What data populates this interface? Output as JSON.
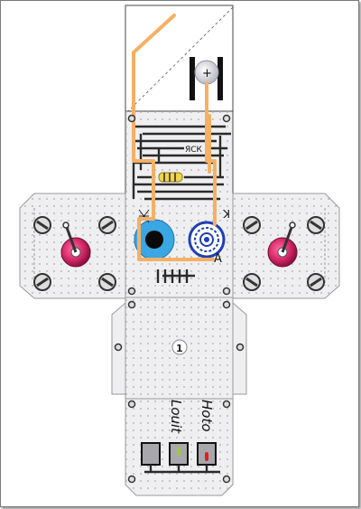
{
  "title": "",
  "labels": {
    "anode_letter": "A",
    "cathode_letter": "K",
    "resistor_code": "ЯСК",
    "plus_sign": "+",
    "page_number": "1",
    "script_top": "Hoto",
    "script_bottom": "Louit"
  },
  "colors": {
    "wire": "#f5b064",
    "panel": "#efeff1",
    "fold_line": "#9a9a9a",
    "knob_ring": "#b01650",
    "dial_fill": "#3aa6e4",
    "led_green": "#9ccc3c",
    "led_red": "#e02020",
    "trace": "#2a2a2a"
  },
  "icons": [
    "screw-icon",
    "toggle-knob-icon",
    "battery-cell-icon",
    "resistor-icon",
    "blue-dial-icon",
    "target-socket-icon",
    "led-green-icon",
    "led-red-icon"
  ]
}
